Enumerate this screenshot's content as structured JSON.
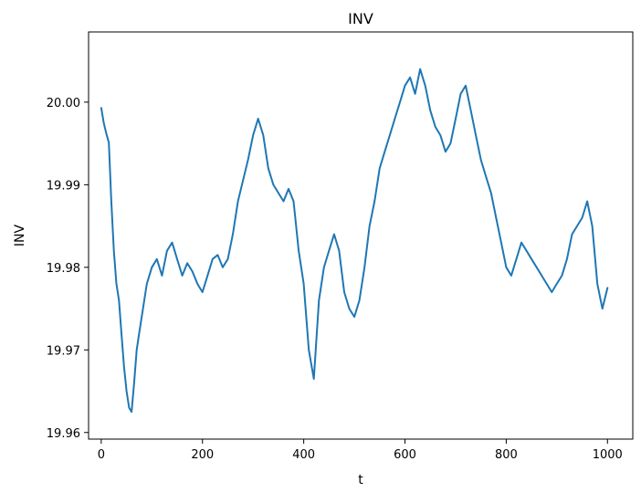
{
  "chart_data": {
    "type": "line",
    "title": "INV",
    "xlabel": "t",
    "ylabel": "INV",
    "xlim": [
      -25,
      1050
    ],
    "ylim": [
      19.9592,
      20.0085
    ],
    "xticks": [
      0,
      200,
      400,
      600,
      800,
      1000
    ],
    "xtick_labels": [
      "0",
      "200",
      "400",
      "600",
      "800",
      "1000"
    ],
    "yticks": [
      19.96,
      19.97,
      19.98,
      19.99,
      20.0
    ],
    "ytick_labels": [
      "19.96",
      "19.97",
      "19.98",
      "19.99",
      "20.00"
    ],
    "grid": false,
    "series": [
      {
        "color": "#1f77b4",
        "x": [
          0,
          5,
          10,
          15,
          20,
          25,
          30,
          35,
          40,
          45,
          50,
          55,
          60,
          65,
          70,
          75,
          80,
          90,
          100,
          110,
          120,
          130,
          140,
          150,
          160,
          170,
          180,
          190,
          200,
          210,
          220,
          230,
          240,
          250,
          260,
          270,
          280,
          290,
          300,
          310,
          320,
          330,
          340,
          350,
          360,
          370,
          380,
          390,
          400,
          410,
          420,
          430,
          440,
          450,
          460,
          470,
          480,
          490,
          500,
          510,
          520,
          530,
          540,
          550,
          560,
          570,
          580,
          590,
          600,
          610,
          620,
          630,
          640,
          650,
          660,
          670,
          680,
          690,
          700,
          710,
          720,
          730,
          740,
          750,
          760,
          770,
          780,
          790,
          800,
          810,
          820,
          830,
          840,
          850,
          860,
          870,
          880,
          890,
          900,
          910,
          920,
          930,
          940,
          950,
          960,
          970,
          980,
          990,
          1000
        ],
        "y": [
          19.9993,
          19.9975,
          19.9962,
          19.9951,
          19.988,
          19.982,
          19.978,
          19.976,
          19.972,
          19.968,
          19.965,
          19.963,
          19.9625,
          19.966,
          19.97,
          19.972,
          19.974,
          19.978,
          19.98,
          19.981,
          19.979,
          19.982,
          19.983,
          19.981,
          19.979,
          19.9805,
          19.9795,
          19.978,
          19.977,
          19.979,
          19.981,
          19.9815,
          19.98,
          19.981,
          19.984,
          19.988,
          19.9905,
          19.993,
          19.996,
          19.998,
          19.996,
          19.992,
          19.99,
          19.989,
          19.988,
          19.9895,
          19.988,
          19.982,
          19.978,
          19.97,
          19.9665,
          19.976,
          19.98,
          19.982,
          19.984,
          19.982,
          19.977,
          19.975,
          19.974,
          19.976,
          19.98,
          19.985,
          19.988,
          19.992,
          19.994,
          19.996,
          19.998,
          20.0,
          20.002,
          20.003,
          20.001,
          20.004,
          20.002,
          19.999,
          19.997,
          19.996,
          19.994,
          19.995,
          19.998,
          20.001,
          20.002,
          19.999,
          19.996,
          19.993,
          19.991,
          19.989,
          19.986,
          19.983,
          19.98,
          19.979,
          19.981,
          19.983,
          19.982,
          19.981,
          19.98,
          19.979,
          19.978,
          19.977,
          19.978,
          19.979,
          19.981,
          19.984,
          19.985,
          19.986,
          19.988,
          19.985,
          19.978,
          19.975,
          19.9775
        ]
      }
    ]
  }
}
